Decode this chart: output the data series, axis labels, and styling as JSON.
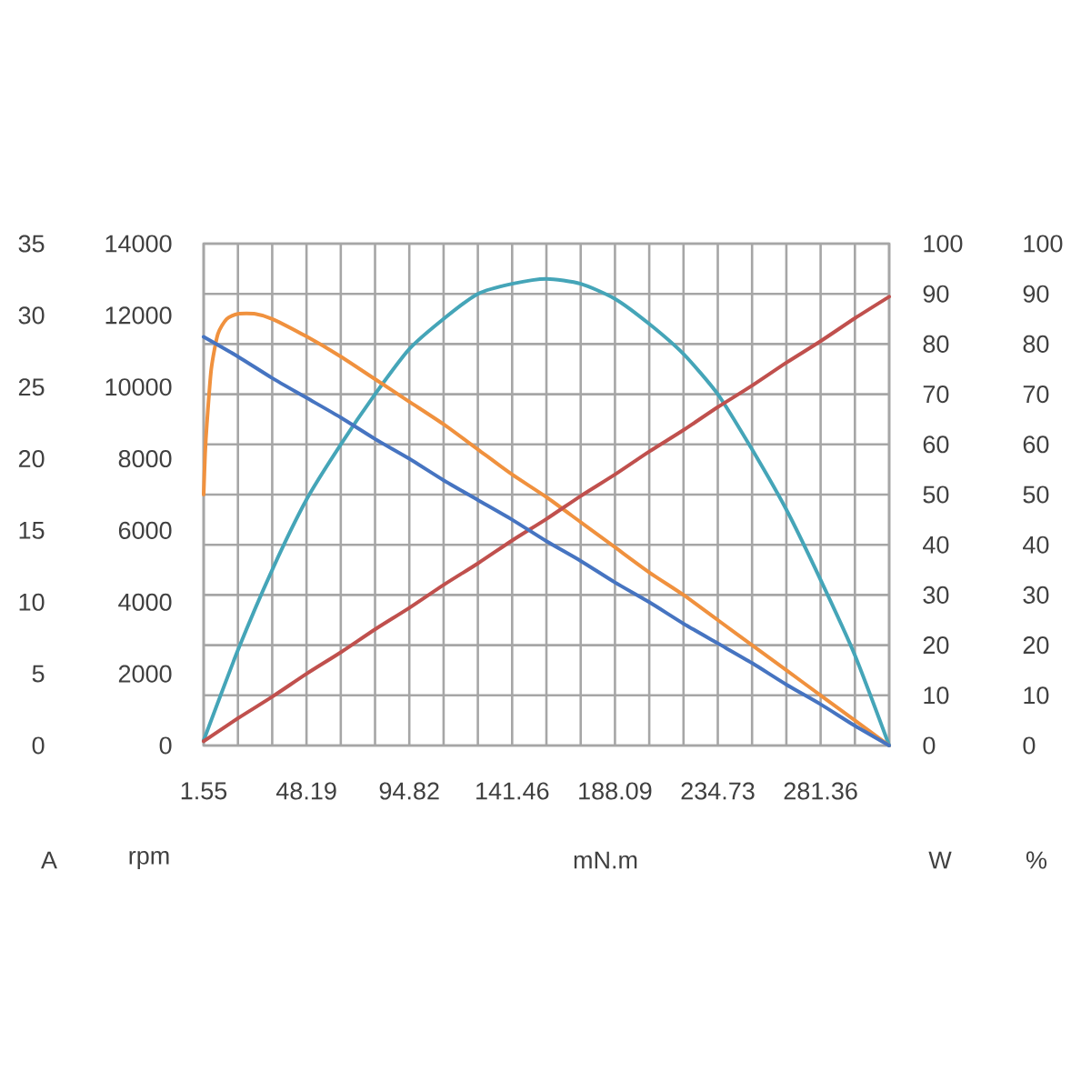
{
  "chart_data": {
    "type": "line",
    "xlabel": "mN.m",
    "ylabel": "A",
    "y2label": "rpm",
    "y3label": "W",
    "annotations": [
      "100",
      "90",
      "80",
      "70",
      "60",
      "50",
      "40",
      "30",
      "20",
      "10",
      "0",
      "%"
    ],
    "x": [
      1.55,
      17.1,
      32.64,
      48.19,
      63.74,
      79.28,
      94.82,
      110.37,
      125.91,
      141.46,
      157.0,
      172.55,
      188.09,
      203.64,
      219.18,
      234.73,
      250.27,
      265.82,
      281.36,
      296.91,
      312.45
    ],
    "xlim": [
      1.55,
      312.45
    ],
    "xticks": [
      1.55,
      {
        "value": 17.1,
        "label": null
      },
      {
        "value": 32.64,
        "label": null
      },
      48.19,
      {
        "value": 63.74,
        "label": null
      },
      {
        "value": 79.28,
        "label": null
      },
      94.82,
      {
        "value": 110.37,
        "label": null
      },
      {
        "value": 125.91,
        "label": null
      },
      141.46,
      {
        "value": 157.0,
        "label": null
      },
      {
        "value": 172.55,
        "label": null
      },
      188.09,
      {
        "value": 203.64,
        "label": null
      },
      {
        "value": 219.18,
        "label": null
      },
      234.73,
      {
        "value": 250.27,
        "label": null
      },
      {
        "value": 265.82,
        "label": null
      },
      281.36,
      {
        "value": 296.91,
        "label": null
      },
      {
        "value": 312.45,
        "label": null
      }
    ],
    "ylim": [
      0,
      35
    ],
    "yticks": [
      0,
      5,
      10,
      15,
      20,
      25,
      30,
      35
    ],
    "y2lim": [
      0,
      14000
    ],
    "y2ticks": [
      0,
      2000,
      4000,
      6000,
      8000,
      10000,
      12000,
      14000
    ],
    "y3lim": [
      0,
      100
    ],
    "y3ticks": [
      0,
      10,
      20,
      30,
      40,
      50,
      60,
      70,
      80,
      90,
      100
    ],
    "grid": true,
    "series": [
      {
        "color": "#c0504d",
        "values": [
          0.3,
          1.9,
          3.4,
          5.0,
          6.5,
          8.1,
          9.6,
          11.2,
          12.7,
          14.3,
          15.8,
          17.4,
          18.9,
          20.5,
          22.0,
          23.6,
          25.1,
          26.7,
          28.2,
          29.8,
          31.3
        ]
      },
      {
        "axis": "y2",
        "color": "#4674c1",
        "values": [
          11400,
          10850,
          10250,
          9700,
          9150,
          8550,
          8000,
          7400,
          6850,
          6300,
          5700,
          5150,
          4550,
          4000,
          3400,
          2850,
          2300,
          1700,
          1150,
          550,
          0
        ]
      },
      {
        "axis": "y3",
        "color": "#45a5b8",
        "values": [
          1,
          19,
          35,
          49,
          60,
          70,
          79,
          85,
          90,
          92,
          93,
          92,
          89,
          84,
          78,
          70,
          59,
          47,
          33,
          18,
          0
        ]
      },
      {
        "axis": "y3",
        "color": "#f0913e",
        "x": [
          1.55,
          2.2,
          3,
          5,
          8,
          12,
          17.1,
          25,
          32.64,
          48.19,
          63.74,
          79.28,
          94.82,
          110.37,
          125.91,
          141.46,
          157.0,
          172.55,
          188.09,
          203.64,
          219.18,
          234.73,
          250.27,
          265.82,
          281.36,
          296.91,
          312.45
        ],
        "values": [
          50,
          58,
          64,
          75,
          82,
          85,
          86,
          86,
          85,
          81.5,
          77.5,
          73,
          68.5,
          64,
          59,
          54,
          49.5,
          44.5,
          39.5,
          34.5,
          30,
          25,
          20,
          15,
          10,
          5,
          0
        ]
      }
    ]
  }
}
